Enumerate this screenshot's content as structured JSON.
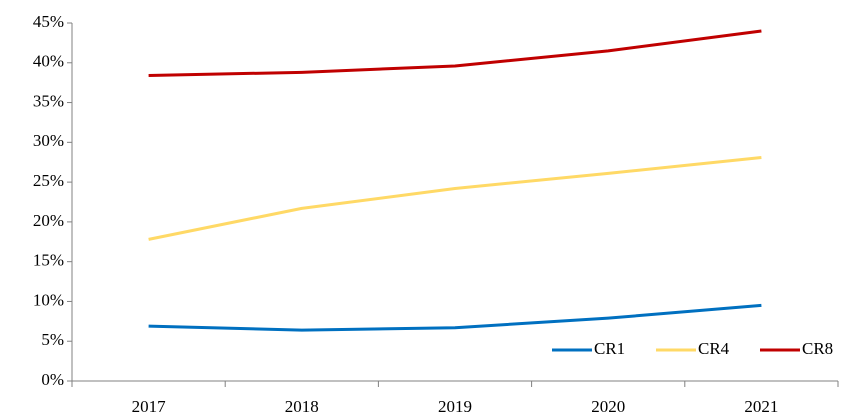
{
  "chart_data": {
    "type": "line",
    "categories": [
      "2017",
      "2018",
      "2019",
      "2020",
      "2021"
    ],
    "series": [
      {
        "name": "CR1",
        "color": "#0070c0",
        "values": [
          6.9,
          6.4,
          6.7,
          7.9,
          9.5
        ]
      },
      {
        "name": "CR4",
        "color": "#ffd966",
        "values": [
          17.8,
          21.7,
          24.2,
          26.1,
          28.1
        ]
      },
      {
        "name": "CR8",
        "color": "#c00000",
        "values": [
          38.4,
          38.8,
          39.6,
          41.5,
          44.0
        ]
      }
    ],
    "ylim": [
      0,
      45
    ],
    "yticks": [
      {
        "value": 0,
        "label": "0%"
      },
      {
        "value": 5,
        "label": "5%"
      },
      {
        "value": 10,
        "label": "10%"
      },
      {
        "value": 15,
        "label": "15%"
      },
      {
        "value": 20,
        "label": "20%"
      },
      {
        "value": 25,
        "label": "25%"
      },
      {
        "value": 30,
        "label": "30%"
      },
      {
        "value": 35,
        "label": "35%"
      },
      {
        "value": 40,
        "label": "40%"
      },
      {
        "value": 45,
        "label": "45%"
      }
    ],
    "grid": false,
    "legend": "lower right"
  }
}
